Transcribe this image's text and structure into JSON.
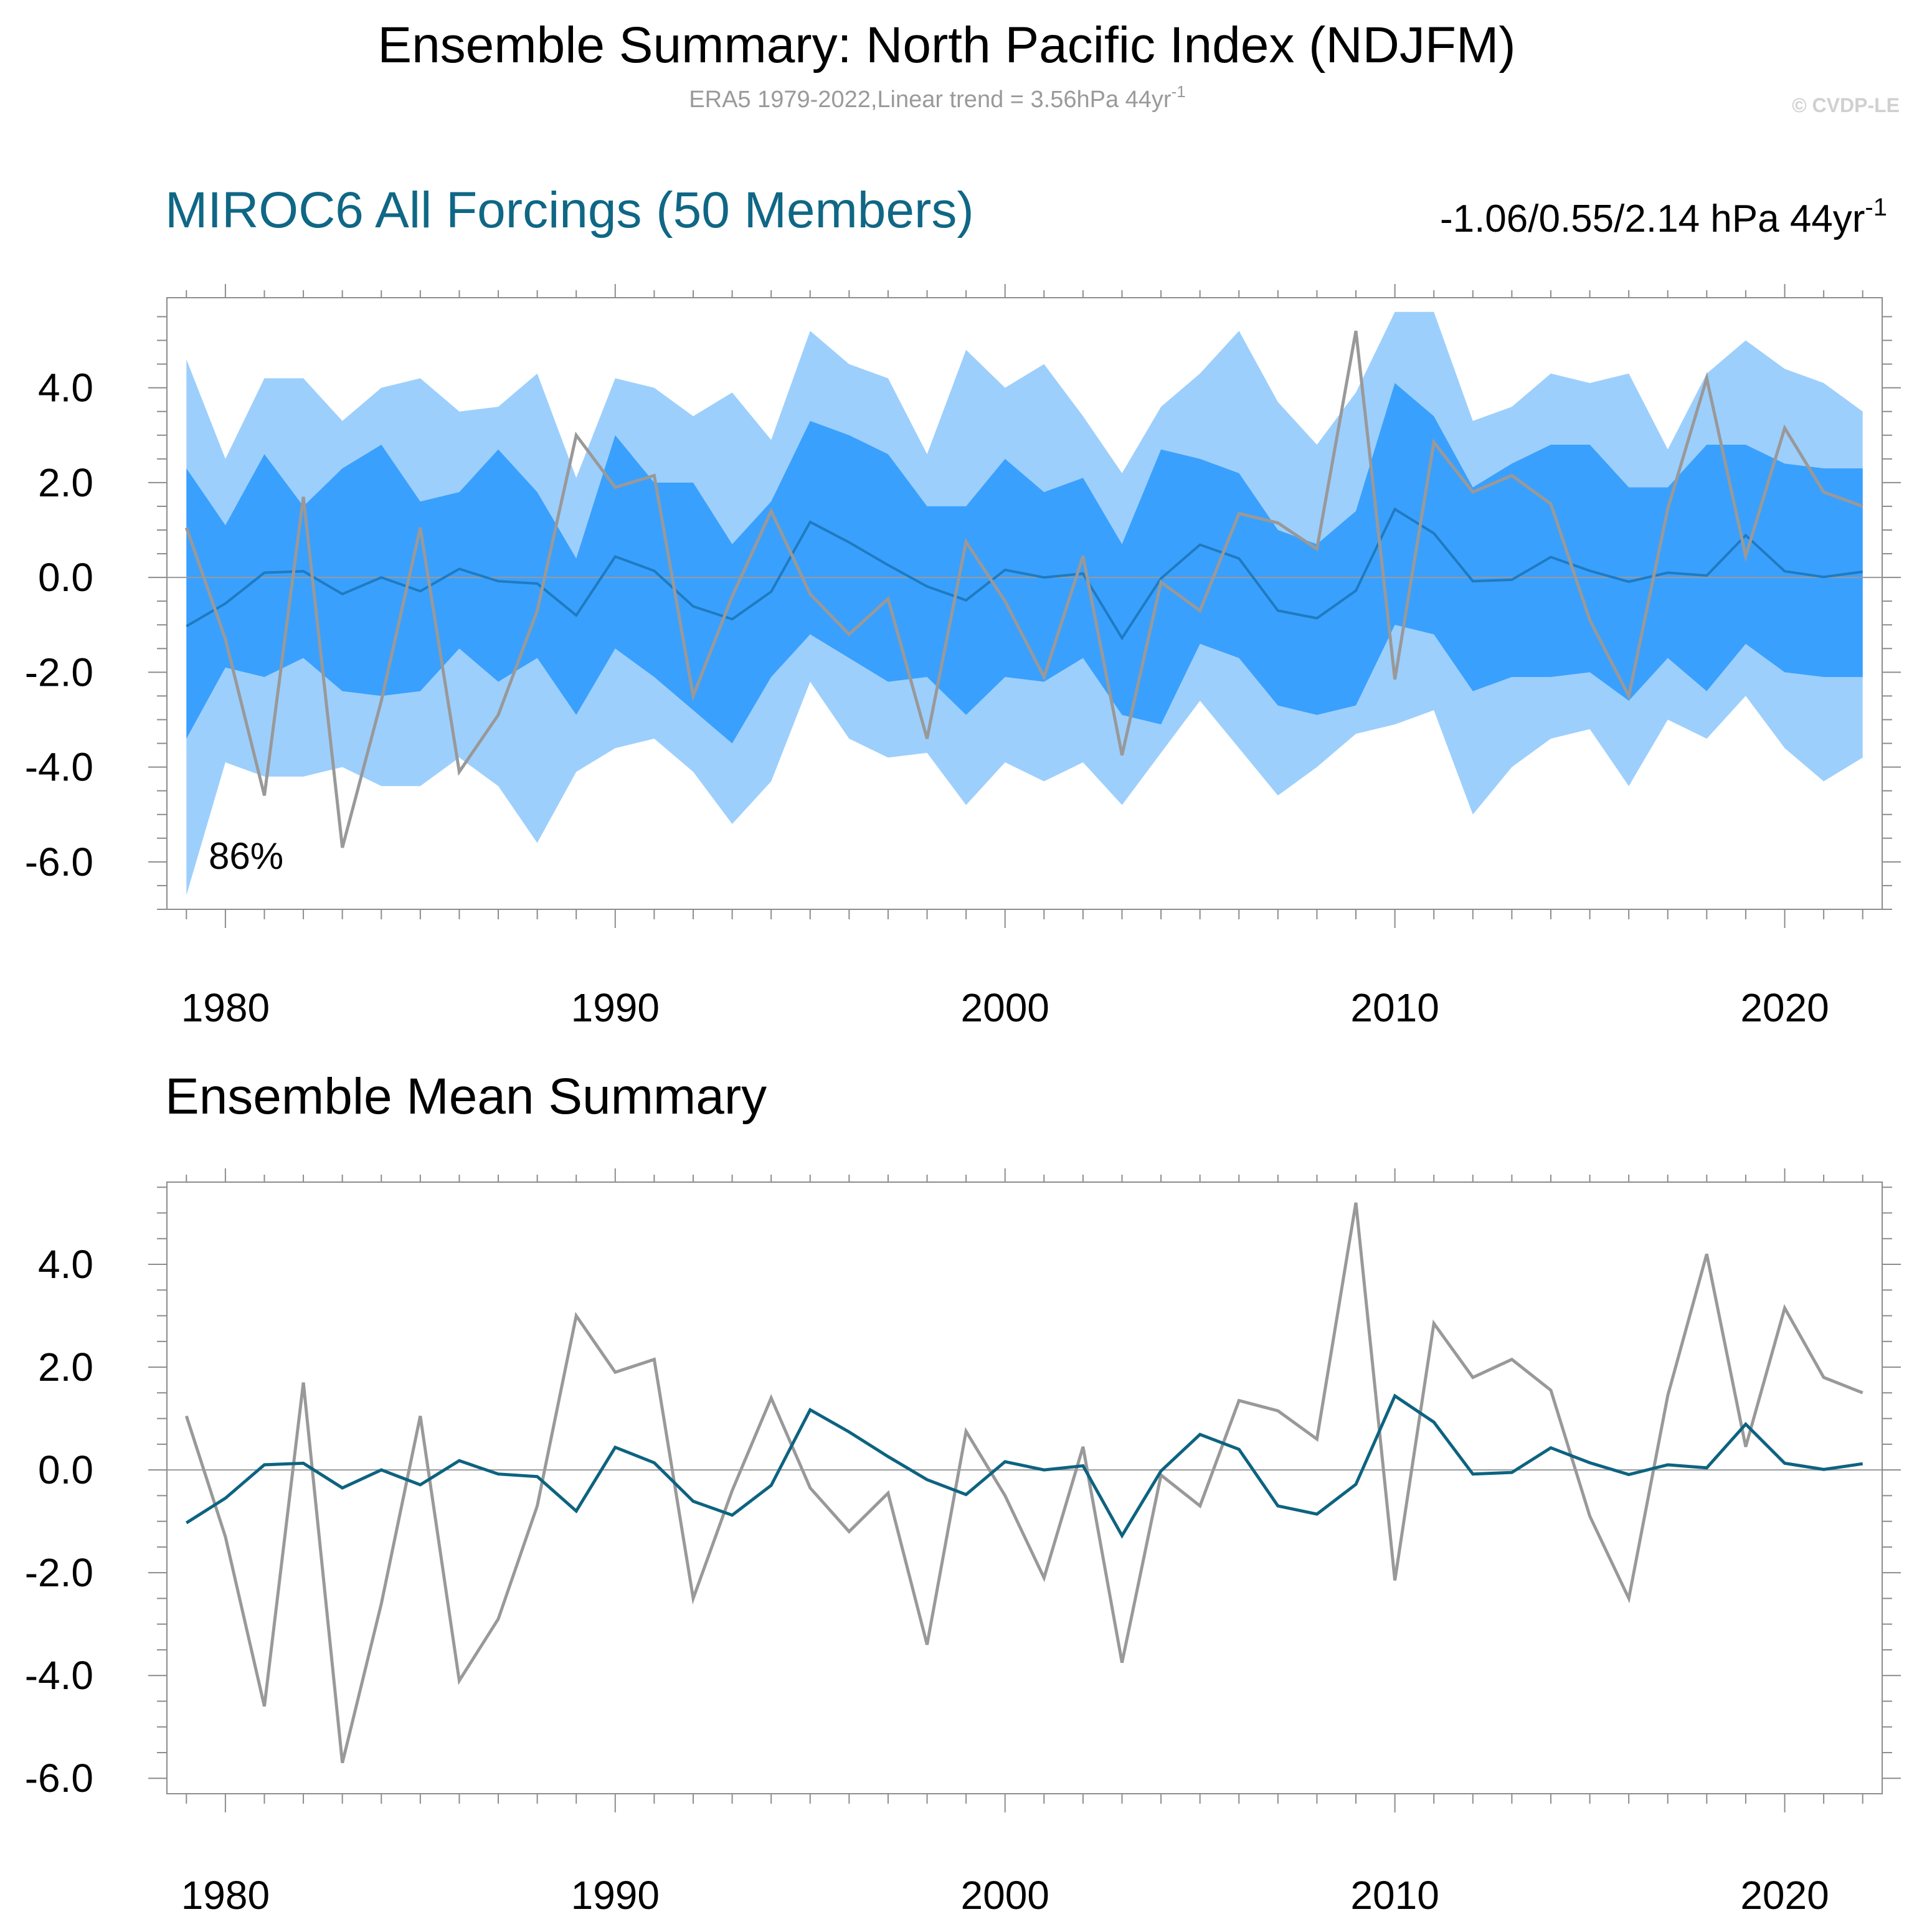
{
  "figure": {
    "title": "Ensemble Summary: North Pacific Index (NDJFM)",
    "subtitle": "ERA5 1979-2022,Linear trend = 3.56hPa 44yr",
    "subtitle_sup": "-1",
    "copyright": "© CVDP-LE"
  },
  "colors": {
    "band_outer": "#9dcffc",
    "band_inner": "#3aa0fd",
    "ens_mean_top": "#1f7bc0",
    "ens_mean_bottom": "#0d6380",
    "obs": "#999999",
    "title_blue": "#0f6785",
    "axis": "#8c8c8c"
  },
  "panels": [
    {
      "title": "MIROC6 All Forcings (50 Members)",
      "right_label": "-1.06/0.55/2.14 hPa 44yr",
      "right_label_sup": "-1",
      "annotation": "86%"
    },
    {
      "title": "Ensemble Mean Summary"
    }
  ],
  "chart_data": [
    {
      "type": "area",
      "title": "MIROC6 All Forcings (50 Members)",
      "xlim": [
        1978.5,
        2022.5
      ],
      "ylim": [
        -7.0,
        5.9
      ],
      "x_ticks": [
        1980,
        1990,
        2000,
        2010,
        2020
      ],
      "x_tick_labels": [
        "1980",
        "1990",
        "2000",
        "2010",
        "2020"
      ],
      "y_ticks": [
        4,
        2,
        0,
        -2,
        -4,
        -6
      ],
      "y_tick_labels": [
        "4.0",
        "2.0",
        "0.0",
        "-2.0",
        "-4.0",
        "-6.0"
      ],
      "x": [
        1979,
        1980,
        1981,
        1982,
        1983,
        1984,
        1985,
        1986,
        1987,
        1988,
        1989,
        1990,
        1991,
        1992,
        1993,
        1994,
        1995,
        1996,
        1997,
        1998,
        1999,
        2000,
        2001,
        2002,
        2003,
        2004,
        2005,
        2006,
        2007,
        2008,
        2009,
        2010,
        2011,
        2012,
        2013,
        2014,
        2015,
        2016,
        2017,
        2018,
        2019,
        2020,
        2021,
        2022
      ],
      "outer_upper": [
        4.6,
        2.5,
        4.2,
        4.2,
        3.3,
        4.0,
        4.2,
        3.5,
        3.6,
        4.3,
        2.1,
        4.2,
        4.0,
        3.4,
        3.9,
        2.9,
        5.2,
        4.5,
        4.2,
        2.6,
        4.8,
        4.0,
        4.5,
        3.4,
        2.2,
        3.6,
        4.3,
        5.2,
        3.7,
        2.8,
        3.9,
        5.6,
        5.6,
        3.3,
        3.6,
        4.3,
        4.1,
        4.3,
        2.7,
        4.3,
        5.0,
        4.4,
        4.1,
        3.5
      ],
      "outer_lower": [
        -6.7,
        -3.9,
        -4.2,
        -4.2,
        -4.0,
        -4.4,
        -4.4,
        -3.8,
        -4.4,
        -5.6,
        -4.1,
        -3.6,
        -3.4,
        -4.1,
        -5.2,
        -4.3,
        -2.2,
        -3.4,
        -3.8,
        -3.7,
        -4.8,
        -3.9,
        -4.3,
        -3.9,
        -4.8,
        -3.7,
        -2.6,
        -3.6,
        -4.6,
        -4.0,
        -3.3,
        -3.1,
        -2.8,
        -5.0,
        -4.0,
        -3.4,
        -3.2,
        -4.4,
        -3.0,
        -3.4,
        -2.5,
        -3.6,
        -4.3,
        -3.8
      ],
      "inner_upper": [
        2.3,
        1.1,
        2.6,
        1.5,
        2.3,
        2.8,
        1.6,
        1.8,
        2.7,
        1.8,
        0.4,
        3.0,
        2.0,
        2.0,
        0.7,
        1.6,
        3.3,
        3.0,
        2.6,
        1.5,
        1.5,
        2.5,
        1.8,
        2.1,
        0.7,
        2.7,
        2.5,
        2.2,
        1.0,
        0.7,
        1.4,
        4.1,
        3.4,
        1.9,
        2.4,
        2.8,
        2.8,
        1.9,
        1.9,
        2.8,
        2.8,
        2.4,
        2.3,
        2.3
      ],
      "inner_lower": [
        -3.4,
        -1.9,
        -2.1,
        -1.7,
        -2.4,
        -2.5,
        -2.4,
        -1.5,
        -2.2,
        -1.7,
        -2.9,
        -1.5,
        -2.1,
        -2.8,
        -3.5,
        -2.1,
        -1.2,
        -1.7,
        -2.2,
        -2.1,
        -2.9,
        -2.1,
        -2.2,
        -1.7,
        -2.9,
        -3.1,
        -1.4,
        -1.7,
        -2.7,
        -2.9,
        -2.7,
        -1.0,
        -1.2,
        -2.4,
        -2.1,
        -2.1,
        -2.0,
        -2.6,
        -1.7,
        -2.4,
        -1.4,
        -2.0,
        -2.1,
        -2.1
      ],
      "series": [
        {
          "name": "",
          "values": [
            -1.03,
            -0.55,
            0.1,
            0.13,
            -0.35,
            0.0,
            -0.29,
            0.18,
            -0.08,
            -0.13,
            -0.8,
            0.44,
            0.14,
            -0.61,
            -0.88,
            -0.3,
            1.17,
            0.74,
            0.26,
            -0.19,
            -0.48,
            0.16,
            0.0,
            0.08,
            -1.28,
            -0.02,
            0.69,
            0.4,
            -0.7,
            -0.86,
            -0.28,
            1.44,
            0.93,
            -0.08,
            -0.05,
            0.43,
            0.14,
            -0.09,
            0.1,
            0.04,
            0.89,
            0.13,
            0.01,
            0.12
          ]
        },
        {
          "name": "",
          "values": [
            1.05,
            -1.3,
            -4.6,
            1.7,
            -5.7,
            -2.6,
            1.05,
            -4.1,
            -2.9,
            -0.7,
            3.0,
            1.9,
            2.15,
            -2.5,
            -0.4,
            1.4,
            -0.35,
            -1.2,
            -0.45,
            -3.4,
            0.75,
            -0.5,
            -2.1,
            0.45,
            -3.75,
            -0.1,
            -0.7,
            1.35,
            1.15,
            0.6,
            5.2,
            -2.15,
            2.85,
            1.8,
            2.15,
            1.55,
            -0.9,
            -2.5,
            1.45,
            4.2,
            0.45,
            3.15,
            1.8,
            1.5
          ]
        }
      ]
    },
    {
      "type": "line",
      "title": "Ensemble Mean Summary",
      "xlim": [
        1978.5,
        2022.5
      ],
      "ylim": [
        -6.3,
        5.6
      ],
      "x_ticks": [
        1980,
        1990,
        2000,
        2010,
        2020
      ],
      "x_tick_labels": [
        "1980",
        "1990",
        "2000",
        "2010",
        "2020"
      ],
      "y_ticks": [
        4,
        2,
        0,
        -2,
        -4,
        -6
      ],
      "y_tick_labels": [
        "4.0",
        "2.0",
        "0.0",
        "-2.0",
        "-4.0",
        "-6.0"
      ],
      "x": [
        1979,
        1980,
        1981,
        1982,
        1983,
        1984,
        1985,
        1986,
        1987,
        1988,
        1989,
        1990,
        1991,
        1992,
        1993,
        1994,
        1995,
        1996,
        1997,
        1998,
        1999,
        2000,
        2001,
        2002,
        2003,
        2004,
        2005,
        2006,
        2007,
        2008,
        2009,
        2010,
        2011,
        2012,
        2013,
        2014,
        2015,
        2016,
        2017,
        2018,
        2019,
        2020,
        2021,
        2022
      ],
      "series": [
        {
          "name": "",
          "values": [
            -1.03,
            -0.55,
            0.1,
            0.13,
            -0.35,
            0.0,
            -0.29,
            0.18,
            -0.08,
            -0.13,
            -0.8,
            0.44,
            0.14,
            -0.61,
            -0.88,
            -0.3,
            1.17,
            0.74,
            0.26,
            -0.19,
            -0.48,
            0.16,
            0.0,
            0.08,
            -1.28,
            -0.02,
            0.69,
            0.4,
            -0.7,
            -0.86,
            -0.28,
            1.44,
            0.93,
            -0.08,
            -0.05,
            0.43,
            0.14,
            -0.09,
            0.1,
            0.04,
            0.89,
            0.13,
            0.01,
            0.12
          ]
        },
        {
          "name": "",
          "values": [
            1.05,
            -1.3,
            -4.6,
            1.7,
            -5.7,
            -2.6,
            1.05,
            -4.1,
            -2.9,
            -0.7,
            3.0,
            1.9,
            2.15,
            -2.5,
            -0.4,
            1.4,
            -0.35,
            -1.2,
            -0.45,
            -3.4,
            0.75,
            -0.5,
            -2.1,
            0.45,
            -3.75,
            -0.1,
            -0.7,
            1.35,
            1.15,
            0.6,
            5.2,
            -2.15,
            2.85,
            1.8,
            2.15,
            1.55,
            -0.9,
            -2.5,
            1.45,
            4.2,
            0.45,
            3.15,
            1.8,
            1.5
          ]
        }
      ]
    }
  ]
}
